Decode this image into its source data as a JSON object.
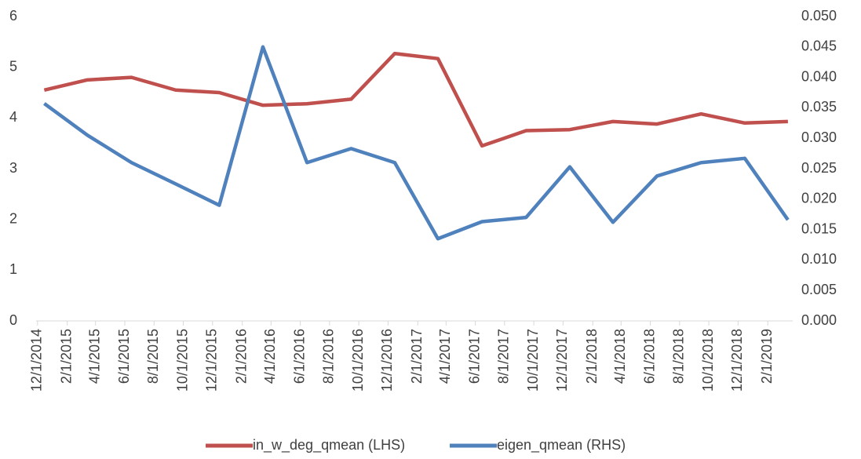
{
  "chart_data": {
    "type": "line",
    "x": [
      "12/15/2014",
      "3/15/2015",
      "6/15/2015",
      "9/15/2015",
      "12/15/2015",
      "3/15/2016",
      "6/15/2016",
      "9/15/2016",
      "12/15/2016",
      "3/15/2017",
      "6/15/2017",
      "9/15/2017",
      "12/15/2017",
      "3/15/2018",
      "6/15/2018",
      "9/15/2018",
      "12/15/2018",
      "3/15/2019"
    ],
    "series": [
      {
        "name": "in_w_deg_qmean (LHS)",
        "color": "#c0504d",
        "values": [
          4.55,
          4.75,
          4.8,
          4.55,
          4.5,
          4.25,
          4.28,
          4.37,
          5.27,
          5.17,
          3.45,
          3.75,
          3.77,
          3.93,
          3.88,
          4.08,
          3.9,
          3.93
        ]
      },
      {
        "name": "eigen_qmean (RHS)",
        "color": "#4f81bd",
        "axis": "y2",
        "values": [
          0.0357,
          0.0305,
          0.026,
          0.0225,
          0.019,
          0.045,
          0.026,
          0.0283,
          0.026,
          0.0135,
          0.0163,
          0.017,
          0.0253,
          0.0162,
          0.0238,
          0.026,
          0.0267,
          0.0166
        ]
      }
    ],
    "xlim": [
      "11/28/2014",
      "3/25/2019"
    ],
    "xticks": [
      "12/1/2014",
      "2/1/2015",
      "4/1/2015",
      "6/1/2015",
      "8/1/2015",
      "10/1/2015",
      "12/1/2015",
      "2/1/2016",
      "4/1/2016",
      "6/1/2016",
      "8/1/2016",
      "10/1/2016",
      "12/1/2016",
      "2/1/2017",
      "4/1/2017",
      "6/1/2017",
      "8/1/2017",
      "10/1/2017",
      "12/1/2017",
      "2/1/2018",
      "4/1/2018",
      "6/1/2018",
      "8/1/2018",
      "10/1/2018",
      "12/1/2018",
      "2/1/2019"
    ],
    "ylim": [
      0,
      6
    ],
    "yticks": [
      0,
      1,
      2,
      3,
      4,
      5,
      6
    ],
    "y2lim": [
      0,
      0.05
    ],
    "y2ticks": [
      {
        "value": 0,
        "label": "0.000"
      },
      {
        "value": 0.005,
        "label": "0.005"
      },
      {
        "value": 0.01,
        "label": "0.010"
      },
      {
        "value": 0.015,
        "label": "0.015"
      },
      {
        "value": 0.02,
        "label": "0.020"
      },
      {
        "value": 0.025,
        "label": "0.025"
      },
      {
        "value": 0.03,
        "label": "0.030"
      },
      {
        "value": 0.035,
        "label": "0.035"
      },
      {
        "value": 0.04,
        "label": "0.040"
      },
      {
        "value": 0.045,
        "label": "0.045"
      },
      {
        "value": 0.05,
        "label": "0.050"
      }
    ],
    "legend": "bottom"
  }
}
